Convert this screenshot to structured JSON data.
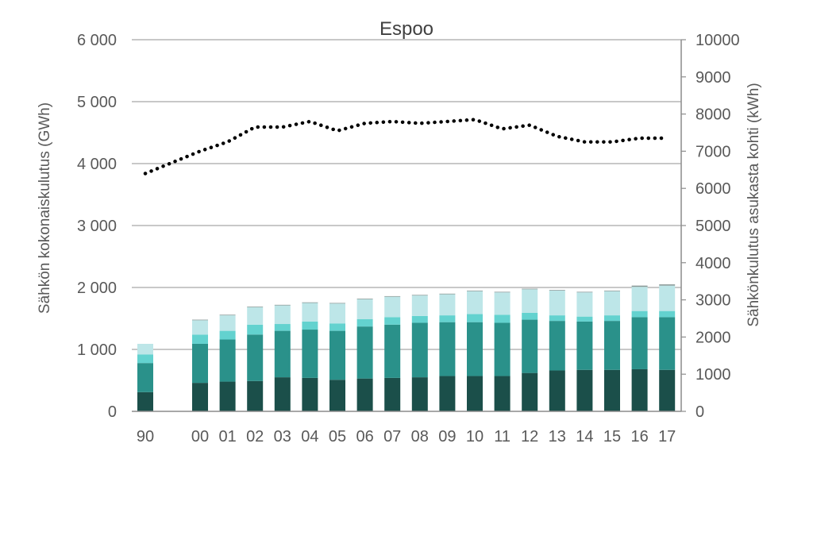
{
  "chart_data": {
    "type": "bar",
    "title": "Espoo",
    "ylabel": "Sähkön kokonaiskulutus (GWh)",
    "y2label": "Sähkönkulutus asukasta kohti (kWh)",
    "categories": [
      "90",
      "00",
      "01",
      "02",
      "03",
      "04",
      "05",
      "06",
      "07",
      "08",
      "09",
      "10",
      "11",
      "12",
      "13",
      "14",
      "15",
      "16",
      "17"
    ],
    "ylim": [
      0,
      6000
    ],
    "yticks": [
      "0",
      "1 000",
      "2 000",
      "3 000",
      "4 000",
      "5 000",
      "6 000"
    ],
    "y2lim": [
      0,
      10000
    ],
    "y2ticks": [
      "0",
      "1000",
      "2000",
      "3000",
      "4000",
      "5000",
      "6000",
      "7000",
      "8000",
      "9000",
      "10000"
    ],
    "grid": true,
    "stacked": true,
    "series": [
      {
        "color": "#1b4f4a",
        "values": [
          310,
          460,
          480,
          490,
          550,
          540,
          510,
          530,
          540,
          550,
          570,
          570,
          570,
          620,
          660,
          670,
          670,
          680,
          670
        ]
      },
      {
        "color": "#2a918a",
        "values": [
          470,
          630,
          680,
          750,
          750,
          780,
          790,
          840,
          860,
          880,
          870,
          870,
          860,
          860,
          800,
          780,
          790,
          840,
          850
        ]
      },
      {
        "color": "#63d2cf",
        "values": [
          140,
          150,
          140,
          160,
          110,
          130,
          120,
          120,
          120,
          110,
          110,
          130,
          130,
          110,
          90,
          80,
          90,
          100,
          100
        ]
      },
      {
        "color": "#bde6e8",
        "values": [
          170,
          230,
          250,
          280,
          300,
          300,
          320,
          320,
          330,
          330,
          340,
          370,
          360,
          380,
          400,
          390,
          390,
          390,
          410
        ]
      },
      {
        "color": "#8a9a98",
        "values": [
          0,
          10,
          10,
          10,
          10,
          10,
          10,
          10,
          10,
          10,
          10,
          10,
          10,
          10,
          10,
          10,
          10,
          20,
          20
        ]
      }
    ],
    "line_series": {
      "axis": "right",
      "style": "dotted",
      "color": "#000000",
      "values": [
        6400,
        7000,
        7250,
        7650,
        7650,
        7800,
        7550,
        7750,
        7800,
        7750,
        7800,
        7850,
        7600,
        7700,
        7400,
        7250,
        7250,
        7350,
        7350
      ]
    }
  }
}
